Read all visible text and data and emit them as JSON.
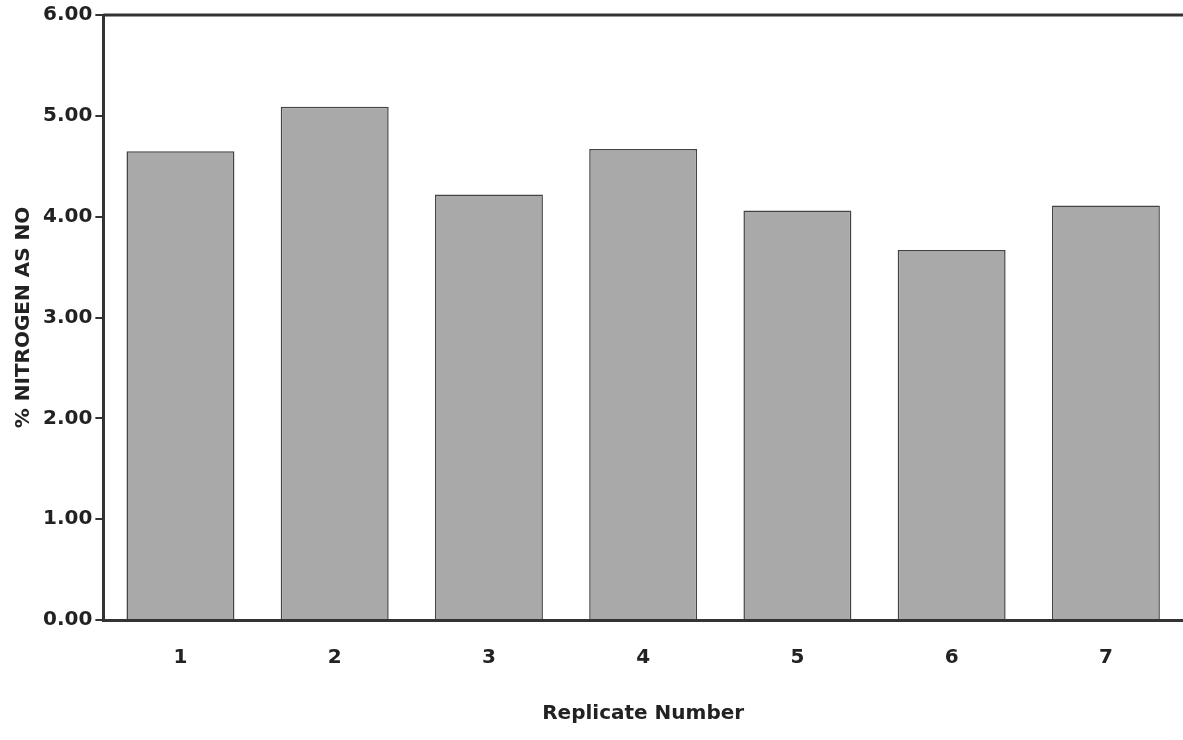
{
  "chart_data": {
    "type": "bar",
    "xlabel": "Replicate Number",
    "ylabel": "% NITROGEN AS NO",
    "categories": [
      "1",
      "2",
      "3",
      "4",
      "5",
      "6",
      "7"
    ],
    "values": [
      4.65,
      5.09,
      4.22,
      4.67,
      4.06,
      3.67,
      4.11
    ],
    "color": "#a9a9a9",
    "ylim": [
      0,
      6
    ],
    "yticks": [
      {
        "value": 0,
        "label": "0.00"
      },
      {
        "value": 1,
        "label": "1.00"
      },
      {
        "value": 2,
        "label": "2.00"
      },
      {
        "value": 3,
        "label": "3.00"
      },
      {
        "value": 4,
        "label": "4.00"
      },
      {
        "value": 5,
        "label": "5.00"
      },
      {
        "value": 6,
        "label": "6.00"
      }
    ],
    "grid": false,
    "legend": false
  }
}
